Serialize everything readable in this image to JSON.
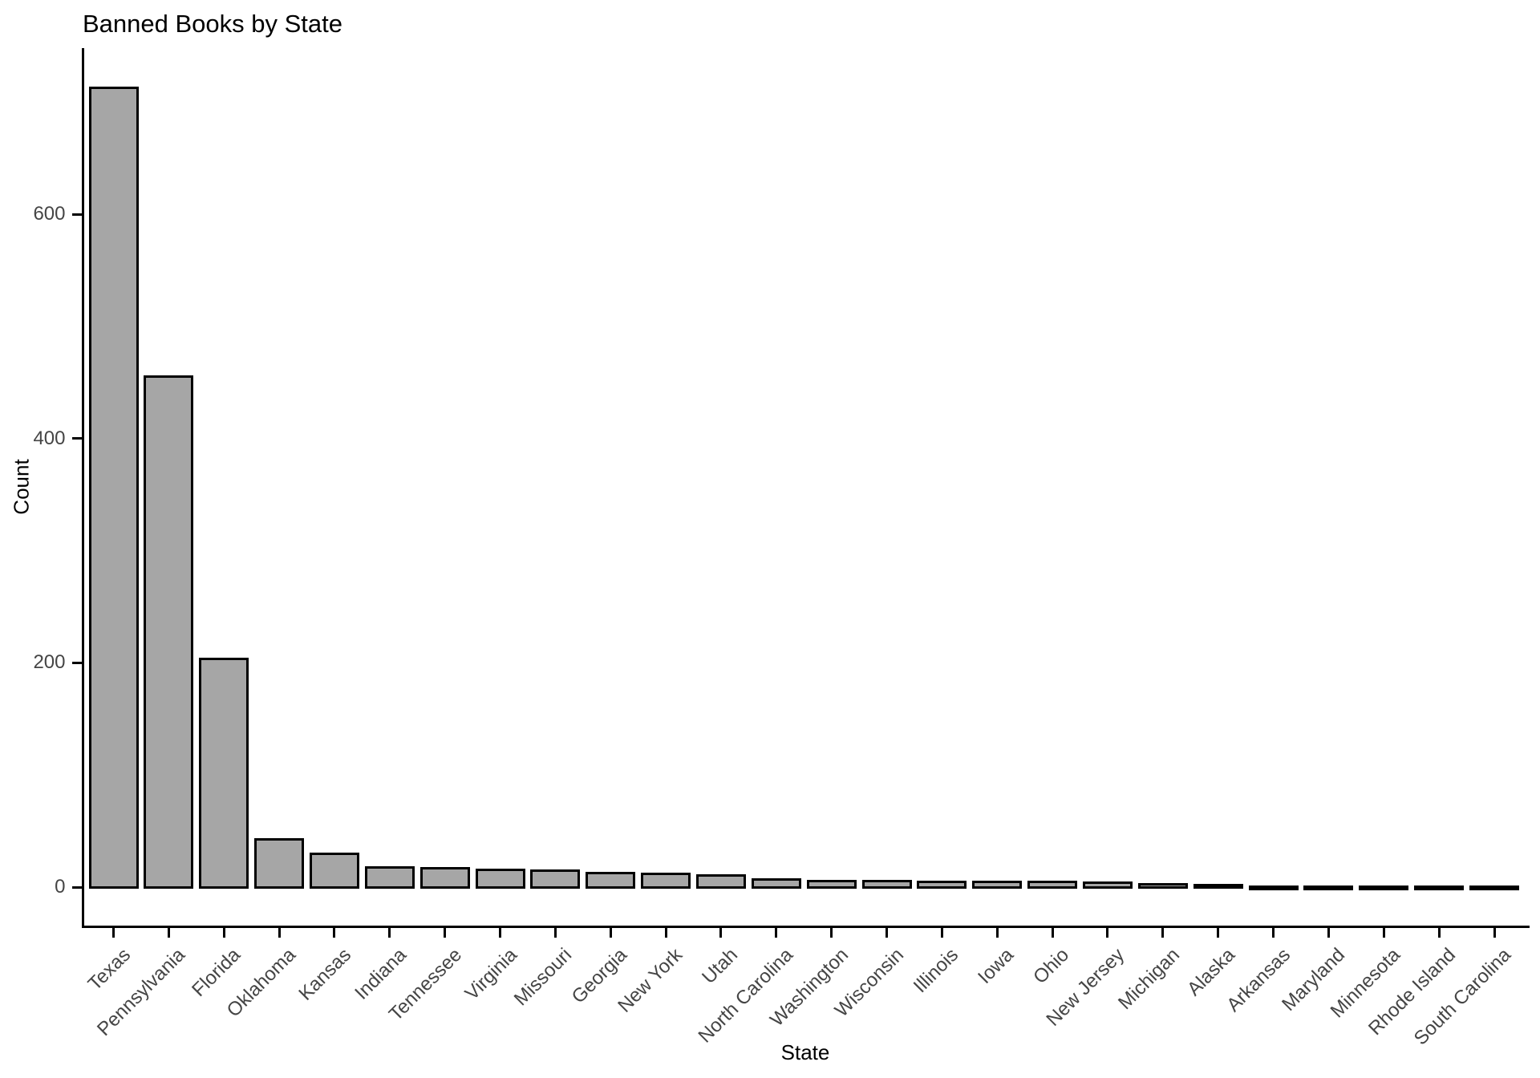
{
  "title": "Banned Books by State",
  "chart_data": {
    "type": "bar",
    "title": "Banned Books by State",
    "xlabel": "State",
    "ylabel": "Count",
    "categories": [
      "Texas",
      "Pennsylvania",
      "Florida",
      "Oklahoma",
      "Kansas",
      "Indiana",
      "Tennessee",
      "Virginia",
      "Missouri",
      "Georgia",
      "New York",
      "Utah",
      "North Carolina",
      "Washington",
      "Wisconsin",
      "Illinois",
      "Iowa",
      "Ohio",
      "New Jersey",
      "Michigan",
      "Alaska",
      "Arkansas",
      "Maryland",
      "Minnesota",
      "Rhode Island",
      "South Carolina"
    ],
    "values": [
      713,
      456,
      204,
      43,
      30,
      18,
      17,
      16,
      15,
      13,
      12,
      11,
      7,
      6,
      6,
      5,
      5,
      5,
      4,
      3,
      2,
      1,
      1,
      1,
      1,
      1
    ],
    "ylim": [
      0,
      750
    ],
    "yticks": [
      0,
      200,
      400,
      600
    ],
    "x_tick_rotation_deg": 45,
    "grid": "off",
    "legend": "none",
    "bar_fill": "#A6A6A6",
    "bar_stroke": "#000000",
    "axis_color": "#000000",
    "tick_label_color": "#454545",
    "background": "#FFFFFF"
  }
}
